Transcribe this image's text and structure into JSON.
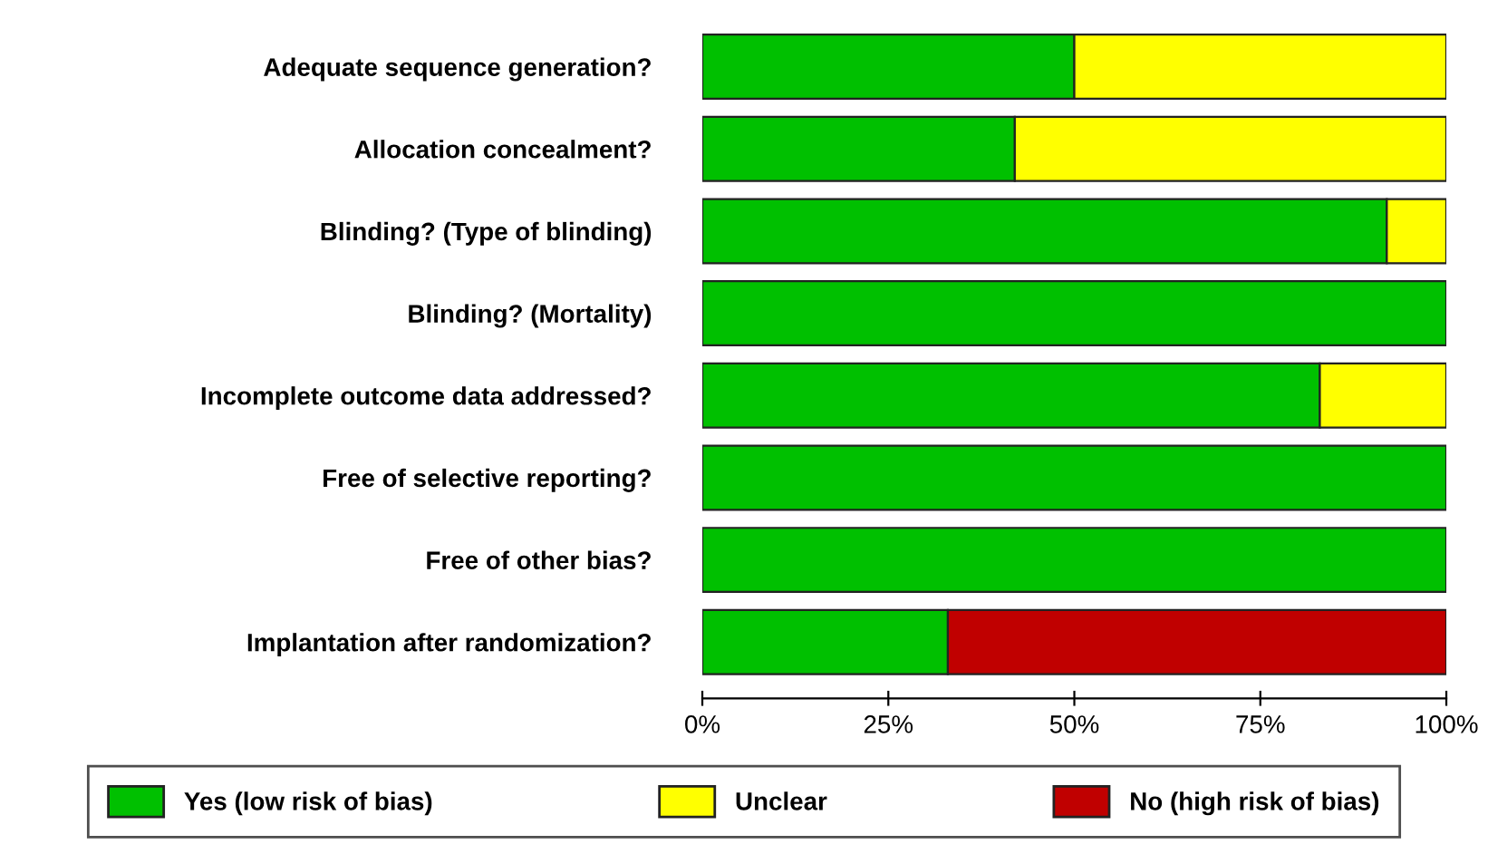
{
  "chart_data": {
    "type": "bar",
    "orientation": "horizontal",
    "stacked": true,
    "categories": [
      "Adequate sequence generation?",
      "Allocation concealment?",
      "Blinding? (Type of blinding)",
      "Blinding? (Mortality)",
      "Incomplete outcome data addressed?",
      "Free of selective reporting?",
      "Free of other bias?",
      "Implantation after randomization?"
    ],
    "series": [
      {
        "name": "Yes (low risk of bias)",
        "color": "#00c000",
        "values": [
          50,
          42,
          92,
          100,
          83,
          100,
          100,
          33
        ]
      },
      {
        "name": "Unclear",
        "color": "#ffff00",
        "values": [
          50,
          58,
          8,
          0,
          17,
          0,
          0,
          0
        ]
      },
      {
        "name": "No (high risk of bias)",
        "color": "#c00000",
        "values": [
          0,
          0,
          0,
          0,
          0,
          0,
          0,
          67
        ]
      }
    ],
    "xlim": [
      0,
      100
    ],
    "xticks": [
      {
        "value": 0,
        "label": "0%"
      },
      {
        "value": 25,
        "label": "25%"
      },
      {
        "value": 50,
        "label": "50%"
      },
      {
        "value": 75,
        "label": "75%"
      },
      {
        "value": 100,
        "label": "100%"
      }
    ],
    "grid": false,
    "legend": "bottom"
  }
}
